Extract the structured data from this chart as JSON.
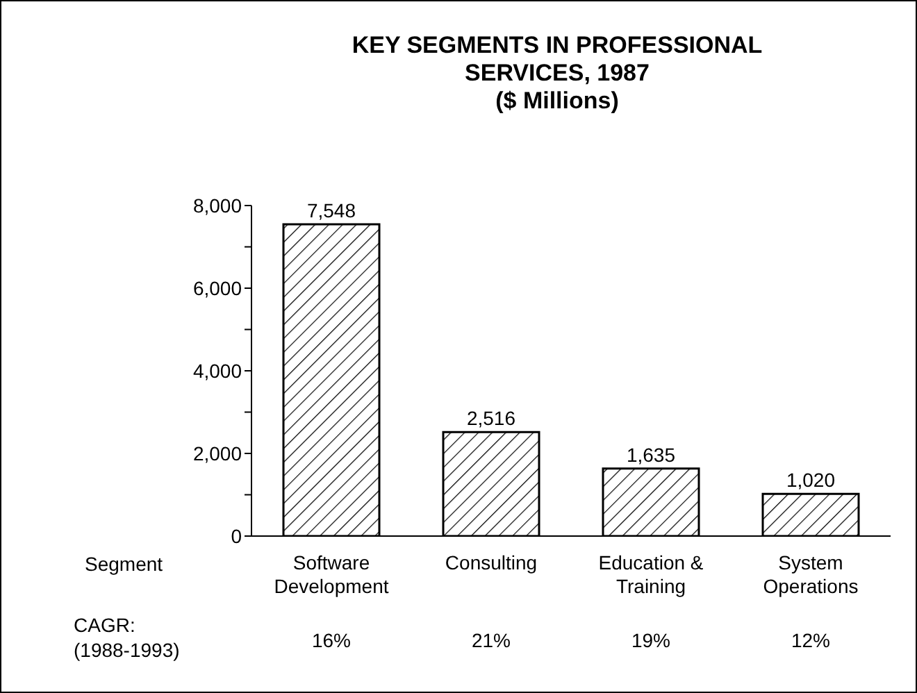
{
  "chart_data": {
    "type": "bar",
    "title": "KEY SEGMENTS IN PROFESSIONAL SERVICES, 1987",
    "subtitle": "($ Millions)",
    "xlabel": "Segment",
    "categories": [
      "Software Development",
      "Consulting",
      "Education & Training",
      "System Operations"
    ],
    "values": [
      7548,
      2516,
      1635,
      1020
    ],
    "color": "#000000",
    "value_labels": [
      "7,548",
      "2,516",
      "1,635",
      "1,020"
    ],
    "ylim": [
      0,
      8000
    ],
    "yticks": [
      {
        "value": 0,
        "label": "0"
      },
      {
        "value": 1000,
        "label": null
      },
      {
        "value": 2000,
        "label": "2,000"
      },
      {
        "value": 3000,
        "label": null
      },
      {
        "value": 4000,
        "label": "4,000"
      },
      {
        "value": 5000,
        "label": null
      },
      {
        "value": 6000,
        "label": "6,000"
      },
      {
        "value": 7000,
        "label": null
      },
      {
        "value": 8000,
        "label": "8,000"
      }
    ],
    "annotations": [
      "CAGR: (1988-1993)",
      "16%",
      "21%",
      "19%",
      "12%"
    ]
  }
}
